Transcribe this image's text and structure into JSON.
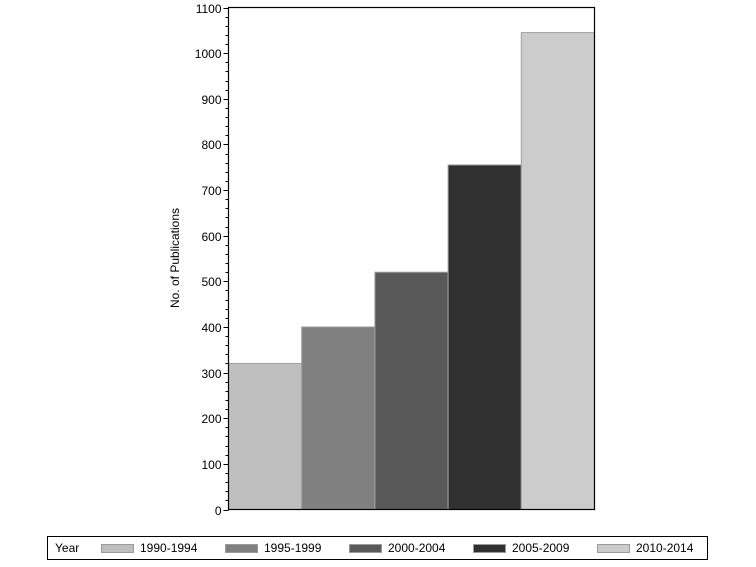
{
  "chart_data": {
    "type": "bar",
    "title": "",
    "xlabel": "",
    "ylabel": "No. of Publications",
    "ylim": [
      0,
      1100
    ],
    "yticks": [
      0,
      100,
      200,
      300,
      400,
      500,
      600,
      700,
      800,
      900,
      1000,
      1100
    ],
    "minor_tick_step": 20,
    "grid": false,
    "legend_position": "bottom",
    "legend_title": "Year",
    "categories": [
      "1990-1994",
      "1995-1999",
      "2000-2004",
      "2005-2009",
      "2010-2014"
    ],
    "values": [
      320,
      400,
      520,
      755,
      1045
    ],
    "colors": [
      "#bfbfbf",
      "#808080",
      "#595959",
      "#303030",
      "#cccccc"
    ]
  },
  "legend": {
    "title": "Year",
    "items": [
      {
        "label": "1990-1994",
        "color": "#bfbfbf"
      },
      {
        "label": "1995-1999",
        "color": "#808080"
      },
      {
        "label": "2000-2004",
        "color": "#595959"
      },
      {
        "label": "2005-2009",
        "color": "#303030"
      },
      {
        "label": "2010-2014",
        "color": "#cccccc"
      }
    ]
  }
}
